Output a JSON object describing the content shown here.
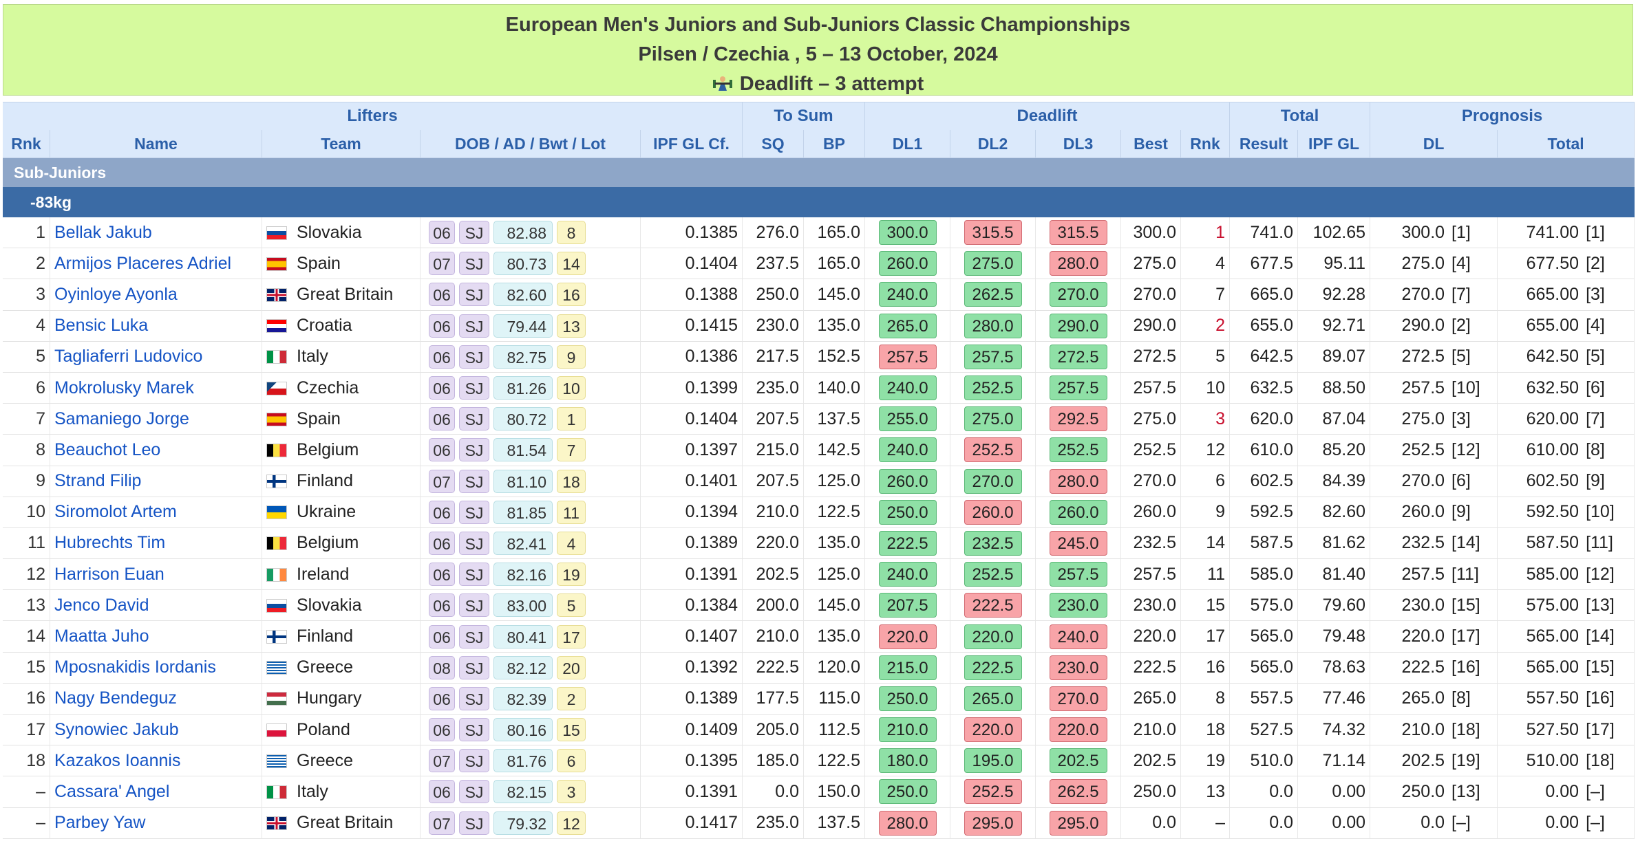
{
  "header": {
    "title": "European Men's Juniors and Sub-Juniors Classic Championships",
    "location": "Pilsen / Czechia , 5 – 13 October, 2024",
    "event": "Deadlift – 3 attempt"
  },
  "columns": {
    "groups": {
      "lifters": "Lifters",
      "to_sum": "To Sum",
      "deadlift": "Deadlift",
      "total": "Total",
      "prognosis": "Prognosis"
    },
    "rnk": "Rnk",
    "name": "Name",
    "team": "Team",
    "dob": "DOB / AD / Bwt / Lot",
    "ipf": "IPF GL Cf.",
    "sq": "SQ",
    "bp": "BP",
    "dl1": "DL1",
    "dl2": "DL2",
    "dl3": "DL3",
    "best": "Best",
    "dl_rnk": "Rnk",
    "result": "Result",
    "ipfgl": "IPF GL",
    "prog_dl": "DL",
    "prog_total": "Total"
  },
  "category": {
    "division": "Sub-Juniors",
    "weight": "-83kg"
  },
  "colors": {
    "good": "#8fe0a6",
    "bad": "#f8a4a8",
    "header_bg": "#d6fa9e",
    "link": "#1554c5"
  },
  "rows": [
    {
      "rnk": "1",
      "name": "Bellak Jakub",
      "team": "Slovakia",
      "flag": "sk",
      "dob": "06",
      "ad": "SJ",
      "bwt": "82.88",
      "lot": "8",
      "ipf": "0.1385",
      "sq": "276.0",
      "bp": "165.0",
      "dl1": "300.0",
      "dl1s": "good",
      "dl2": "315.5",
      "dl2s": "bad",
      "dl3": "315.5",
      "dl3s": "bad",
      "best": "300.0",
      "drnk": "1",
      "drnk_red": true,
      "result": "741.0",
      "ipfgl": "102.65",
      "pdl": "300.0",
      "pdlr": "[1]",
      "ptot": "741.00",
      "ptotr": "[1]"
    },
    {
      "rnk": "2",
      "name": "Armijos Placeres Adriel",
      "team": "Spain",
      "flag": "es",
      "dob": "07",
      "ad": "SJ",
      "bwt": "80.73",
      "lot": "14",
      "ipf": "0.1404",
      "sq": "237.5",
      "bp": "165.0",
      "dl1": "260.0",
      "dl1s": "good",
      "dl2": "275.0",
      "dl2s": "good",
      "dl3": "280.0",
      "dl3s": "bad",
      "best": "275.0",
      "drnk": "4",
      "drnk_red": false,
      "result": "677.5",
      "ipfgl": "95.11",
      "pdl": "275.0",
      "pdlr": "[4]",
      "ptot": "677.50",
      "ptotr": "[2]"
    },
    {
      "rnk": "3",
      "name": "Oyinloye Ayonla",
      "team": "Great Britain",
      "flag": "gb",
      "dob": "06",
      "ad": "SJ",
      "bwt": "82.60",
      "lot": "16",
      "ipf": "0.1388",
      "sq": "250.0",
      "bp": "145.0",
      "dl1": "240.0",
      "dl1s": "good",
      "dl2": "262.5",
      "dl2s": "good",
      "dl3": "270.0",
      "dl3s": "good",
      "best": "270.0",
      "drnk": "7",
      "drnk_red": false,
      "result": "665.0",
      "ipfgl": "92.28",
      "pdl": "270.0",
      "pdlr": "[7]",
      "ptot": "665.00",
      "ptotr": "[3]"
    },
    {
      "rnk": "4",
      "name": "Bensic Luka",
      "team": "Croatia",
      "flag": "hr",
      "dob": "06",
      "ad": "SJ",
      "bwt": "79.44",
      "lot": "13",
      "ipf": "0.1415",
      "sq": "230.0",
      "bp": "135.0",
      "dl1": "265.0",
      "dl1s": "good",
      "dl2": "280.0",
      "dl2s": "good",
      "dl3": "290.0",
      "dl3s": "good",
      "best": "290.0",
      "drnk": "2",
      "drnk_red": true,
      "result": "655.0",
      "ipfgl": "92.71",
      "pdl": "290.0",
      "pdlr": "[2]",
      "ptot": "655.00",
      "ptotr": "[4]"
    },
    {
      "rnk": "5",
      "name": "Tagliaferri Ludovico",
      "team": "Italy",
      "flag": "it",
      "dob": "06",
      "ad": "SJ",
      "bwt": "82.75",
      "lot": "9",
      "ipf": "0.1386",
      "sq": "217.5",
      "bp": "152.5",
      "dl1": "257.5",
      "dl1s": "bad",
      "dl2": "257.5",
      "dl2s": "good",
      "dl3": "272.5",
      "dl3s": "good",
      "best": "272.5",
      "drnk": "5",
      "drnk_red": false,
      "result": "642.5",
      "ipfgl": "89.07",
      "pdl": "272.5",
      "pdlr": "[5]",
      "ptot": "642.50",
      "ptotr": "[5]"
    },
    {
      "rnk": "6",
      "name": "Mokrolusky Marek",
      "team": "Czechia",
      "flag": "cz",
      "dob": "06",
      "ad": "SJ",
      "bwt": "81.26",
      "lot": "10",
      "ipf": "0.1399",
      "sq": "235.0",
      "bp": "140.0",
      "dl1": "240.0",
      "dl1s": "good",
      "dl2": "252.5",
      "dl2s": "good",
      "dl3": "257.5",
      "dl3s": "good",
      "best": "257.5",
      "drnk": "10",
      "drnk_red": false,
      "result": "632.5",
      "ipfgl": "88.50",
      "pdl": "257.5",
      "pdlr": "[10]",
      "ptot": "632.50",
      "ptotr": "[6]"
    },
    {
      "rnk": "7",
      "name": "Samaniego Jorge",
      "team": "Spain",
      "flag": "es",
      "dob": "06",
      "ad": "SJ",
      "bwt": "80.72",
      "lot": "1",
      "ipf": "0.1404",
      "sq": "207.5",
      "bp": "137.5",
      "dl1": "255.0",
      "dl1s": "good",
      "dl2": "275.0",
      "dl2s": "good",
      "dl3": "292.5",
      "dl3s": "bad",
      "best": "275.0",
      "drnk": "3",
      "drnk_red": true,
      "result": "620.0",
      "ipfgl": "87.04",
      "pdl": "275.0",
      "pdlr": "[3]",
      "ptot": "620.00",
      "ptotr": "[7]"
    },
    {
      "rnk": "8",
      "name": "Beauchot Leo",
      "team": "Belgium",
      "flag": "be",
      "dob": "06",
      "ad": "SJ",
      "bwt": "81.54",
      "lot": "7",
      "ipf": "0.1397",
      "sq": "215.0",
      "bp": "142.5",
      "dl1": "240.0",
      "dl1s": "good",
      "dl2": "252.5",
      "dl2s": "bad",
      "dl3": "252.5",
      "dl3s": "good",
      "best": "252.5",
      "drnk": "12",
      "drnk_red": false,
      "result": "610.0",
      "ipfgl": "85.20",
      "pdl": "252.5",
      "pdlr": "[12]",
      "ptot": "610.00",
      "ptotr": "[8]"
    },
    {
      "rnk": "9",
      "name": "Strand Filip",
      "team": "Finland",
      "flag": "fi",
      "dob": "07",
      "ad": "SJ",
      "bwt": "81.10",
      "lot": "18",
      "ipf": "0.1401",
      "sq": "207.5",
      "bp": "125.0",
      "dl1": "260.0",
      "dl1s": "good",
      "dl2": "270.0",
      "dl2s": "good",
      "dl3": "280.0",
      "dl3s": "bad",
      "best": "270.0",
      "drnk": "6",
      "drnk_red": false,
      "result": "602.5",
      "ipfgl": "84.39",
      "pdl": "270.0",
      "pdlr": "[6]",
      "ptot": "602.50",
      "ptotr": "[9]"
    },
    {
      "rnk": "10",
      "name": "Siromolot Artem",
      "team": "Ukraine",
      "flag": "ua",
      "dob": "06",
      "ad": "SJ",
      "bwt": "81.85",
      "lot": "11",
      "ipf": "0.1394",
      "sq": "210.0",
      "bp": "122.5",
      "dl1": "250.0",
      "dl1s": "good",
      "dl2": "260.0",
      "dl2s": "bad",
      "dl3": "260.0",
      "dl3s": "good",
      "best": "260.0",
      "drnk": "9",
      "drnk_red": false,
      "result": "592.5",
      "ipfgl": "82.60",
      "pdl": "260.0",
      "pdlr": "[9]",
      "ptot": "592.50",
      "ptotr": "[10]"
    },
    {
      "rnk": "11",
      "name": "Hubrechts Tim",
      "team": "Belgium",
      "flag": "be",
      "dob": "06",
      "ad": "SJ",
      "bwt": "82.41",
      "lot": "4",
      "ipf": "0.1389",
      "sq": "220.0",
      "bp": "135.0",
      "dl1": "222.5",
      "dl1s": "good",
      "dl2": "232.5",
      "dl2s": "good",
      "dl3": "245.0",
      "dl3s": "bad",
      "best": "232.5",
      "drnk": "14",
      "drnk_red": false,
      "result": "587.5",
      "ipfgl": "81.62",
      "pdl": "232.5",
      "pdlr": "[14]",
      "ptot": "587.50",
      "ptotr": "[11]"
    },
    {
      "rnk": "12",
      "name": "Harrison Euan",
      "team": "Ireland",
      "flag": "ie",
      "dob": "06",
      "ad": "SJ",
      "bwt": "82.16",
      "lot": "19",
      "ipf": "0.1391",
      "sq": "202.5",
      "bp": "125.0",
      "dl1": "240.0",
      "dl1s": "good",
      "dl2": "252.5",
      "dl2s": "good",
      "dl3": "257.5",
      "dl3s": "good",
      "best": "257.5",
      "drnk": "11",
      "drnk_red": false,
      "result": "585.0",
      "ipfgl": "81.40",
      "pdl": "257.5",
      "pdlr": "[11]",
      "ptot": "585.00",
      "ptotr": "[12]"
    },
    {
      "rnk": "13",
      "name": "Jenco David",
      "team": "Slovakia",
      "flag": "sk",
      "dob": "06",
      "ad": "SJ",
      "bwt": "83.00",
      "lot": "5",
      "ipf": "0.1384",
      "sq": "200.0",
      "bp": "145.0",
      "dl1": "207.5",
      "dl1s": "good",
      "dl2": "222.5",
      "dl2s": "bad",
      "dl3": "230.0",
      "dl3s": "good",
      "best": "230.0",
      "drnk": "15",
      "drnk_red": false,
      "result": "575.0",
      "ipfgl": "79.60",
      "pdl": "230.0",
      "pdlr": "[15]",
      "ptot": "575.00",
      "ptotr": "[13]"
    },
    {
      "rnk": "14",
      "name": "Maatta Juho",
      "team": "Finland",
      "flag": "fi",
      "dob": "06",
      "ad": "SJ",
      "bwt": "80.41",
      "lot": "17",
      "ipf": "0.1407",
      "sq": "210.0",
      "bp": "135.0",
      "dl1": "220.0",
      "dl1s": "bad",
      "dl2": "220.0",
      "dl2s": "good",
      "dl3": "240.0",
      "dl3s": "bad",
      "best": "220.0",
      "drnk": "17",
      "drnk_red": false,
      "result": "565.0",
      "ipfgl": "79.48",
      "pdl": "220.0",
      "pdlr": "[17]",
      "ptot": "565.00",
      "ptotr": "[14]"
    },
    {
      "rnk": "15",
      "name": "Mposnakidis Iordanis",
      "team": "Greece",
      "flag": "gr",
      "dob": "08",
      "ad": "SJ",
      "bwt": "82.12",
      "lot": "20",
      "ipf": "0.1392",
      "sq": "222.5",
      "bp": "120.0",
      "dl1": "215.0",
      "dl1s": "good",
      "dl2": "222.5",
      "dl2s": "good",
      "dl3": "230.0",
      "dl3s": "bad",
      "best": "222.5",
      "drnk": "16",
      "drnk_red": false,
      "result": "565.0",
      "ipfgl": "78.63",
      "pdl": "222.5",
      "pdlr": "[16]",
      "ptot": "565.00",
      "ptotr": "[15]"
    },
    {
      "rnk": "16",
      "name": "Nagy Bendeguz",
      "team": "Hungary",
      "flag": "hu",
      "dob": "06",
      "ad": "SJ",
      "bwt": "82.39",
      "lot": "2",
      "ipf": "0.1389",
      "sq": "177.5",
      "bp": "115.0",
      "dl1": "250.0",
      "dl1s": "good",
      "dl2": "265.0",
      "dl2s": "good",
      "dl3": "270.0",
      "dl3s": "bad",
      "best": "265.0",
      "drnk": "8",
      "drnk_red": false,
      "result": "557.5",
      "ipfgl": "77.46",
      "pdl": "265.0",
      "pdlr": "[8]",
      "ptot": "557.50",
      "ptotr": "[16]"
    },
    {
      "rnk": "17",
      "name": "Synowiec Jakub",
      "team": "Poland",
      "flag": "pl",
      "dob": "06",
      "ad": "SJ",
      "bwt": "80.16",
      "lot": "15",
      "ipf": "0.1409",
      "sq": "205.0",
      "bp": "112.5",
      "dl1": "210.0",
      "dl1s": "good",
      "dl2": "220.0",
      "dl2s": "bad",
      "dl3": "220.0",
      "dl3s": "bad",
      "best": "210.0",
      "drnk": "18",
      "drnk_red": false,
      "result": "527.5",
      "ipfgl": "74.32",
      "pdl": "210.0",
      "pdlr": "[18]",
      "ptot": "527.50",
      "ptotr": "[17]"
    },
    {
      "rnk": "18",
      "name": "Kazakos Ioannis",
      "team": "Greece",
      "flag": "gr",
      "dob": "07",
      "ad": "SJ",
      "bwt": "81.76",
      "lot": "6",
      "ipf": "0.1395",
      "sq": "185.0",
      "bp": "122.5",
      "dl1": "180.0",
      "dl1s": "good",
      "dl2": "195.0",
      "dl2s": "good",
      "dl3": "202.5",
      "dl3s": "good",
      "best": "202.5",
      "drnk": "19",
      "drnk_red": false,
      "result": "510.0",
      "ipfgl": "71.14",
      "pdl": "202.5",
      "pdlr": "[19]",
      "ptot": "510.00",
      "ptotr": "[18]"
    },
    {
      "rnk": "–",
      "name": "Cassara' Angel",
      "team": "Italy",
      "flag": "it",
      "dob": "06",
      "ad": "SJ",
      "bwt": "82.15",
      "lot": "3",
      "ipf": "0.1391",
      "sq": "0.0",
      "bp": "150.0",
      "dl1": "250.0",
      "dl1s": "good",
      "dl2": "252.5",
      "dl2s": "bad",
      "dl3": "262.5",
      "dl3s": "bad",
      "best": "250.0",
      "drnk": "13",
      "drnk_red": false,
      "result": "0.0",
      "ipfgl": "0.00",
      "pdl": "250.0",
      "pdlr": "[13]",
      "ptot": "0.00",
      "ptotr": "[–]"
    },
    {
      "rnk": "–",
      "name": "Parbey Yaw",
      "team": "Great Britain",
      "flag": "gb",
      "dob": "07",
      "ad": "SJ",
      "bwt": "79.32",
      "lot": "12",
      "ipf": "0.1417",
      "sq": "235.0",
      "bp": "137.5",
      "dl1": "280.0",
      "dl1s": "bad",
      "dl2": "295.0",
      "dl2s": "bad",
      "dl3": "295.0",
      "dl3s": "bad",
      "best": "0.0",
      "drnk": "–",
      "drnk_red": false,
      "result": "0.0",
      "ipfgl": "0.00",
      "pdl": "0.0",
      "pdlr": "[–]",
      "ptot": "0.00",
      "ptotr": "[–]"
    }
  ]
}
